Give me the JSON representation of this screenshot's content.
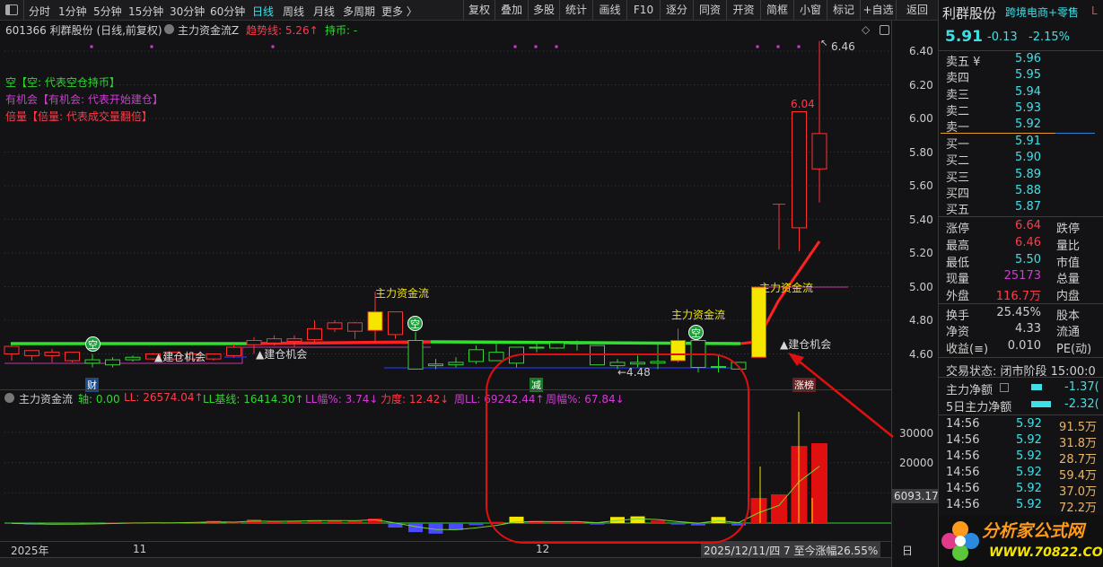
{
  "toolbar": {
    "periods": [
      "分时",
      "1分钟",
      "5分钟",
      "15分钟",
      "30分钟",
      "60分钟",
      "日线",
      "周线",
      "月线",
      "多周期",
      "更多 〉"
    ],
    "active_period": "日线",
    "buttons": [
      "复权",
      "叠加",
      "多股",
      "统计",
      "画线",
      "F10",
      "逐分",
      "同资",
      "开资",
      "简框",
      "小窗",
      "标记",
      "+自选",
      "返回"
    ]
  },
  "chart_header": {
    "title": "601366 利群股份 (日线,前复权)",
    "indicator": "主力资金流Z",
    "trend_label": "趋势线: 5.26↑",
    "hold_label": "持币: -"
  },
  "legend": {
    "empty": "空【空: 代表空仓持币】",
    "chance": "有机会【有机会: 代表开始建仓】",
    "double": "倍量【倍量: 代表成交量翻倍】"
  },
  "annotations": {
    "fund_flow": "主力资金流",
    "build_chance": "▲建仓机会",
    "empty_icon": "空",
    "high_label": "6.46",
    "peak_label": "6.04",
    "low_label": "←4.48",
    "tag_cai": "财",
    "tag_jian": "减",
    "tag_zhangbang": "涨榜"
  },
  "price_axis": [
    "6.40",
    "6.20",
    "6.00",
    "5.80",
    "5.60",
    "5.40",
    "5.20",
    "5.00",
    "4.80",
    "4.60"
  ],
  "sub_header": {
    "name": "主力资金流",
    "axis": "轴: 0.00",
    "ll": "LL: 26574.04↑",
    "ll_base": "LL基线: 16414.30↑",
    "ll_pct": "LL幅%: 3.74↓",
    "strength": "力度: 12.42↓",
    "week_ll": "周LL: 69242.44↑",
    "week_pct": "周幅%: 67.84↓"
  },
  "sub_axis": [
    "30000",
    "20000"
  ],
  "sub_cursor_value": "6093.17",
  "date_axis": {
    "year": "2025年",
    "m11": "11",
    "m12": "12",
    "info": "2025/12/11/四 7 至今涨幅26.55%",
    "right": "日"
  },
  "quote": {
    "name": "利群股份",
    "sector": "跨境电商+零售",
    "flag": "L",
    "price": "5.91",
    "change": "-0.13",
    "change_pct": "-2.15%",
    "asks": [
      {
        "label": "卖五 ¥",
        "price": "5.96"
      },
      {
        "label": "卖四",
        "price": "5.95"
      },
      {
        "label": "卖三",
        "price": "5.94"
      },
      {
        "label": "卖二",
        "price": "5.93"
      },
      {
        "label": "卖一",
        "price": "5.92"
      }
    ],
    "bids": [
      {
        "label": "买一",
        "price": "5.91"
      },
      {
        "label": "买二",
        "price": "5.90"
      },
      {
        "label": "买三",
        "price": "5.89"
      },
      {
        "label": "买四",
        "price": "5.88"
      },
      {
        "label": "买五",
        "price": "5.87"
      }
    ],
    "stats1": [
      {
        "l": "涨停",
        "v": "6.64",
        "r": "跌停"
      },
      {
        "l": "最高",
        "v": "6.46",
        "r": "量比"
      },
      {
        "l": "最低",
        "v": "5.50",
        "r": "市值"
      },
      {
        "l": "现量",
        "v": "25173",
        "r": "总量"
      },
      {
        "l": "外盘",
        "v": "116.7万",
        "r": "内盘"
      }
    ],
    "stats2": [
      {
        "l": "换手",
        "v": "25.45%",
        "r": "股本"
      },
      {
        "l": "净资",
        "v": "4.33",
        "r": "流通"
      },
      {
        "l": "收益(≡)",
        "v": "0.010",
        "r": "PE(动)"
      }
    ],
    "trade_status": "交易状态: 闭市阶段 15:00:0",
    "net_main": {
      "label": "主力净额",
      "value": "-1.37("
    },
    "net_5d": {
      "label": "5日主力净额",
      "value": "-2.32("
    },
    "ticks": [
      {
        "t": "14:56",
        "p": "5.92",
        "v": "91.5万"
      },
      {
        "t": "14:56",
        "p": "5.92",
        "v": "31.8万"
      },
      {
        "t": "14:56",
        "p": "5.92",
        "v": "28.7万"
      },
      {
        "t": "14:56",
        "p": "5.92",
        "v": "59.4万"
      },
      {
        "t": "14:56",
        "p": "5.92",
        "v": "37.0万"
      },
      {
        "t": "14:56",
        "p": "5.92",
        "v": "72.2万"
      }
    ]
  },
  "watermark": {
    "text": "分析家公式网",
    "url": "WWW.70822.COM"
  },
  "colors": {
    "up": "#ff3232",
    "down": "#2fd72f",
    "signal": "#f5e600",
    "cyan": "#3ee0e6",
    "neg_bar": "#4a4aff"
  },
  "chart_data": {
    "type": "candlestick",
    "ylim": [
      4.45,
      6.5
    ],
    "candles": [
      [
        4.6,
        4.645,
        4.65,
        4.56
      ],
      [
        4.59,
        4.62,
        4.62,
        4.56
      ],
      [
        4.59,
        4.61,
        4.63,
        4.55
      ],
      [
        4.56,
        4.61,
        4.61,
        4.55
      ],
      [
        4.565,
        4.545,
        4.6,
        4.52
      ],
      [
        4.565,
        4.535,
        4.58,
        4.52
      ],
      [
        4.58,
        4.565,
        4.59,
        4.555
      ],
      [
        4.57,
        4.6,
        4.605,
        4.565
      ],
      [
        4.57,
        4.61,
        4.61,
        4.56
      ],
      [
        4.57,
        4.6,
        4.6,
        4.565
      ],
      [
        4.57,
        4.6,
        4.6,
        4.56
      ],
      [
        4.59,
        4.64,
        4.66,
        4.58
      ],
      [
        4.655,
        4.68,
        4.7,
        4.6
      ],
      [
        4.665,
        4.69,
        4.71,
        4.65
      ],
      [
        4.675,
        4.69,
        4.71,
        4.64
      ],
      [
        4.685,
        4.75,
        4.8,
        4.67
      ],
      [
        4.75,
        4.785,
        4.8,
        4.73
      ],
      [
        4.735,
        4.785,
        4.79,
        4.69
      ],
      [
        4.74,
        4.85,
        4.97,
        4.66
      ],
      [
        4.715,
        4.85,
        4.85,
        4.69
      ],
      [
        4.68,
        4.51,
        4.73,
        4.51
      ],
      [
        4.54,
        4.53,
        4.57,
        4.51
      ],
      [
        4.55,
        4.535,
        4.58,
        4.52
      ],
      [
        4.625,
        4.555,
        4.65,
        4.54
      ],
      [
        4.61,
        4.56,
        4.66,
        4.56
      ],
      [
        4.64,
        4.545,
        4.64,
        4.52
      ],
      [
        4.64,
        4.635,
        4.67,
        4.61
      ],
      [
        4.665,
        4.635,
        4.665,
        4.63
      ],
      [
        4.665,
        4.66,
        4.68,
        4.62
      ],
      [
        4.65,
        4.535,
        4.65,
        4.535
      ],
      [
        4.55,
        4.53,
        4.57,
        4.51
      ],
      [
        4.55,
        4.54,
        4.59,
        4.52
      ],
      [
        4.555,
        4.545,
        4.67,
        4.51
      ],
      [
        4.56,
        4.68,
        4.75,
        4.55
      ],
      [
        4.68,
        4.52,
        4.69,
        4.49
      ],
      [
        4.525,
        4.52,
        4.59,
        4.49
      ],
      [
        4.55,
        4.51,
        4.55,
        4.51
      ],
      [
        4.58,
        4.997,
        5.0,
        4.58
      ],
      [
        5.49,
        5.49,
        5.49,
        5.22
      ],
      [
        5.35,
        6.04,
        6.04,
        5.21
      ],
      [
        5.7,
        5.91,
        6.46,
        5.5
      ]
    ],
    "signal_candles": [
      18,
      33,
      37
    ],
    "fund_flow": [
      -300,
      -500,
      -500,
      -400,
      -200,
      100,
      200,
      200,
      100,
      300,
      700,
      200,
      1200,
      400,
      700,
      1000,
      900,
      700,
      1500,
      -1500,
      -3000,
      -3500,
      -2300,
      -700,
      400,
      2100,
      700,
      500,
      500,
      -500,
      2000,
      2200,
      800,
      -500,
      -800,
      2000,
      -800,
      8300,
      9500,
      25500,
      26400
    ],
    "fund_flow_colors": [
      "neg",
      "neg",
      "neg",
      "neg",
      "neg",
      "pos",
      "pos",
      "pos",
      "pos",
      "pos",
      "pos",
      "pos",
      "pos",
      "pos",
      "pos",
      "pos",
      "pos",
      "pos",
      "pos",
      "neg",
      "neg",
      "neg",
      "neg",
      "neg",
      "pos",
      "sig",
      "pos",
      "pos",
      "pos",
      "neg",
      "sig",
      "sig",
      "pos",
      "neg",
      "neg",
      "sig",
      "neg",
      "pos",
      "pos",
      "pos",
      "pos"
    ],
    "sub_ylim": [
      -5000,
      35000
    ]
  }
}
